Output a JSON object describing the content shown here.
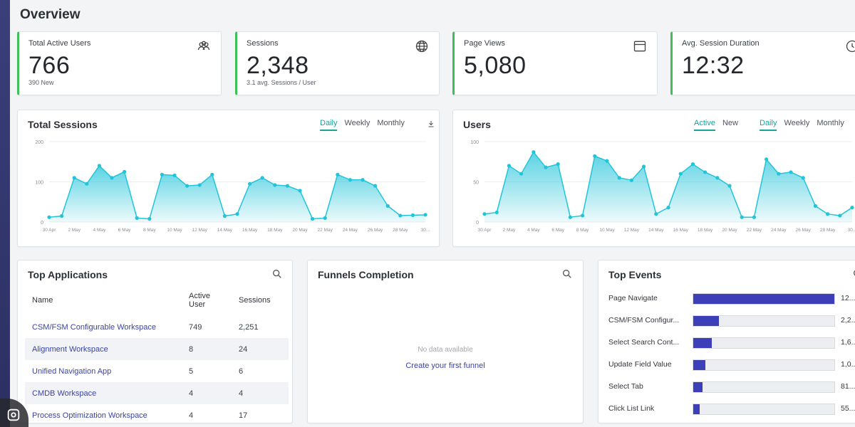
{
  "page": {
    "title": "Overview"
  },
  "kpis": [
    {
      "label": "Total Active Users",
      "value": "766",
      "sub": "390 New",
      "icon": "users-icon"
    },
    {
      "label": "Sessions",
      "value": "2,348",
      "sub": "3.1 avg. Sessions / User",
      "icon": "globe-icon"
    },
    {
      "label": "Page Views",
      "value": "5,080",
      "sub": "",
      "icon": "browser-window-icon"
    },
    {
      "label": "Avg. Session Duration",
      "value": "12:32",
      "sub": "",
      "icon": "clock-icon"
    }
  ],
  "sessions_chart": {
    "title": "Total Sessions",
    "tabs": [
      "Daily",
      "Weekly",
      "Monthly"
    ],
    "active_tab": "Daily",
    "download_icon": "download-icon"
  },
  "users_chart": {
    "title": "Users",
    "toggle": [
      "Active",
      "New"
    ],
    "active_toggle": "Active",
    "tabs": [
      "Daily",
      "Weekly",
      "Monthly"
    ],
    "active_tab": "Daily"
  },
  "chart_data": [
    {
      "type": "area",
      "title": "Total Sessions",
      "ylim": [
        0,
        200
      ],
      "y_ticks": [
        "200",
        "100",
        "0"
      ],
      "x_tick_labels": [
        "30 Apr",
        "2 May",
        "4 May",
        "6 May",
        "8 May",
        "10 May",
        "12 May",
        "14 May",
        "16 May",
        "18 May",
        "20 May",
        "22 May",
        "24 May",
        "26 May",
        "28 May",
        "30..."
      ],
      "series": [
        {
          "name": "Sessions",
          "color": "#22c4d9",
          "values": [
            12,
            15,
            110,
            95,
            140,
            110,
            125,
            10,
            8,
            118,
            116,
            90,
            92,
            118,
            15,
            20,
            95,
            110,
            92,
            90,
            78,
            8,
            10,
            118,
            105,
            105,
            90,
            40,
            16,
            17,
            18
          ]
        }
      ]
    },
    {
      "type": "area",
      "title": "Users",
      "ylim": [
        0,
        100
      ],
      "y_ticks": [
        "100",
        "50",
        "0"
      ],
      "x_tick_labels": [
        "30 Apr",
        "2 May",
        "4 May",
        "6 May",
        "8 May",
        "10 May",
        "12 May",
        "14 May",
        "16 May",
        "18 May",
        "20 May",
        "22 May",
        "24 May",
        "26 May",
        "28 May",
        "30..."
      ],
      "series": [
        {
          "name": "Users",
          "color": "#22c4d9",
          "values": [
            10,
            12,
            70,
            60,
            87,
            68,
            72,
            6,
            8,
            82,
            76,
            55,
            52,
            69,
            10,
            18,
            60,
            72,
            62,
            55,
            45,
            6,
            6,
            78,
            60,
            62,
            55,
            20,
            10,
            8,
            18
          ]
        }
      ]
    }
  ],
  "top_applications": {
    "title": "Top Applications",
    "columns": [
      "Name",
      "Active User",
      "Sessions"
    ],
    "rows": [
      {
        "name": "CSM/FSM Configurable Workspace",
        "active": "749",
        "sessions": "2,251"
      },
      {
        "name": "Alignment Workspace",
        "active": "8",
        "sessions": "24"
      },
      {
        "name": "Unified Navigation App",
        "active": "5",
        "sessions": "6"
      },
      {
        "name": "CMDB Workspace",
        "active": "4",
        "sessions": "4"
      },
      {
        "name": "Process Optimization Workspace",
        "active": "4",
        "sessions": "17"
      }
    ]
  },
  "funnels": {
    "title": "Funnels Completion",
    "empty_text": "No data available",
    "create_link": "Create your first funnel"
  },
  "top_events": {
    "title": "Top Events",
    "rows": [
      {
        "label": "Page Navigate",
        "value": "12...",
        "fraction": 1.0
      },
      {
        "label": "CSM/FSM Configur...",
        "value": "2,2...",
        "fraction": 0.18
      },
      {
        "label": "Select Search Cont...",
        "value": "1,6...",
        "fraction": 0.13
      },
      {
        "label": "Update Field Value",
        "value": "1,0...",
        "fraction": 0.085
      },
      {
        "label": "Select Tab",
        "value": "81...",
        "fraction": 0.065
      },
      {
        "label": "Click List Link",
        "value": "55...",
        "fraction": 0.045
      }
    ]
  }
}
